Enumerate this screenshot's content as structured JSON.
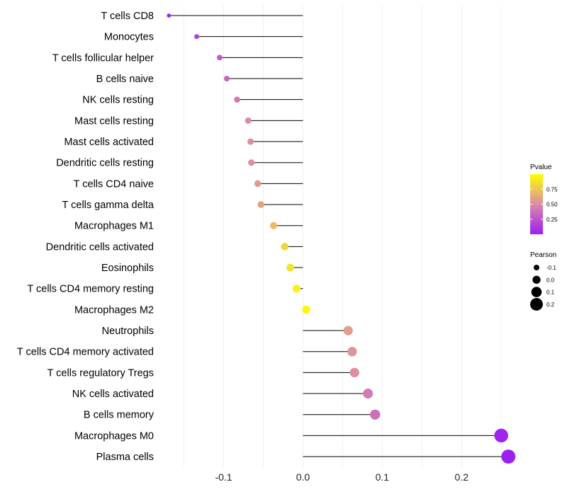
{
  "chart_data": {
    "type": "lollipop",
    "title": "",
    "xlabel": "",
    "ylabel": "",
    "xlim": [
      -0.18,
      0.265
    ],
    "x_ticks": [
      -0.1,
      0.0,
      0.1,
      0.2
    ],
    "x_tick_labels": [
      "-0.1",
      "0.0",
      "0.1",
      "0.2"
    ],
    "grid": true,
    "baseline": 0,
    "points": [
      {
        "label": "T cells CD8",
        "value": -0.169,
        "pvalue": 0.02
      },
      {
        "label": "Monocytes",
        "value": -0.134,
        "pvalue": 0.15
      },
      {
        "label": "T cells follicular helper",
        "value": -0.105,
        "pvalue": 0.28
      },
      {
        "label": "B cells naive",
        "value": -0.096,
        "pvalue": 0.34
      },
      {
        "label": "NK cells resting",
        "value": -0.083,
        "pvalue": 0.42
      },
      {
        "label": "Mast cells resting",
        "value": -0.069,
        "pvalue": 0.5
      },
      {
        "label": "Mast cells activated",
        "value": -0.066,
        "pvalue": 0.52
      },
      {
        "label": "Dendritic cells resting",
        "value": -0.065,
        "pvalue": 0.52
      },
      {
        "label": "T cells CD4 naive",
        "value": -0.057,
        "pvalue": 0.57
      },
      {
        "label": "T cells gamma delta",
        "value": -0.053,
        "pvalue": 0.6
      },
      {
        "label": "Macrophages M1",
        "value": -0.037,
        "pvalue": 0.71
      },
      {
        "label": "Dendritic cells activated",
        "value": -0.023,
        "pvalue": 0.82
      },
      {
        "label": "Eosinophils",
        "value": -0.016,
        "pvalue": 0.87
      },
      {
        "label": "T cells CD4 memory resting",
        "value": -0.008,
        "pvalue": 0.94
      },
      {
        "label": "Macrophages M2",
        "value": 0.004,
        "pvalue": 0.97
      },
      {
        "label": "Neutrophils",
        "value": 0.057,
        "pvalue": 0.58
      },
      {
        "label": "T cells CD4 memory activated",
        "value": 0.062,
        "pvalue": 0.54
      },
      {
        "label": "T cells regulatory  Tregs ",
        "value": 0.065,
        "pvalue": 0.52
      },
      {
        "label": "NK cells activated",
        "value": 0.082,
        "pvalue": 0.43
      },
      {
        "label": "B cells memory",
        "value": 0.091,
        "pvalue": 0.37
      },
      {
        "label": "Macrophages M0",
        "value": 0.25,
        "pvalue": 0.02
      },
      {
        "label": "Plasma cells",
        "value": 0.259,
        "pvalue": 0.01
      }
    ],
    "color_scale": {
      "title": "Pvalue",
      "domain": [
        0.0,
        1.0
      ],
      "low_color": "#9d1ef2",
      "mid_color": "#db8ba6",
      "high_color": "#ffff00",
      "ticks": [
        0.25,
        0.5,
        0.75
      ],
      "tick_labels": [
        "0.25",
        "0.50",
        "0.75"
      ]
    },
    "size_legend": {
      "title": "Pearson",
      "values": [
        -0.1,
        0.0,
        0.1,
        0.2
      ],
      "labels": [
        "-0.1",
        "0.0",
        "0.1",
        "0.2"
      ]
    },
    "colors": {
      "stem": "#000000",
      "grid": "#ececec",
      "text": "#000000",
      "legend_key": "#000000"
    }
  }
}
